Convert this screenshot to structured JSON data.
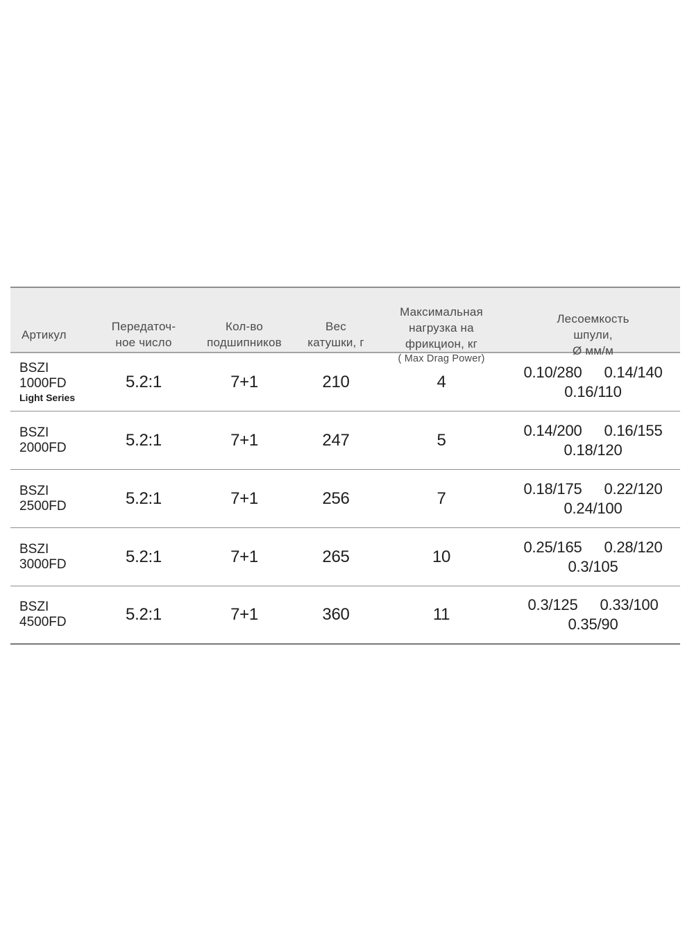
{
  "page": {
    "background_color": "#ffffff"
  },
  "table": {
    "style": {
      "header_background": "#edecec",
      "header_text_color": "#4a4a4a",
      "body_text_color": "#1d1d1d",
      "top_border_color": "#8e8e8e",
      "row_separator_color": "#8f8f8f",
      "bottom_border_color": "#777777"
    },
    "columns": [
      {
        "id": "artikul",
        "label": "Артикул"
      },
      {
        "id": "gear_ratio",
        "label": "Передаточ-\nное число"
      },
      {
        "id": "bearings",
        "label": "Кол-во\nподшипников"
      },
      {
        "id": "weight",
        "label": "Вес\nкатушки, г"
      },
      {
        "id": "max_drag",
        "label": "Максимальная\nнагрузка на\nфрикцион, кг",
        "sublabel": "( Max Drag Power)"
      },
      {
        "id": "line_capacity",
        "label": "Лесоемкость\nшпули,\nØ мм/м"
      }
    ],
    "rows": [
      {
        "model_line1": "BSZI",
        "model_line2": "1000FD",
        "model_note": "Light Series",
        "gear_ratio": "5.2:1",
        "bearings": "7+1",
        "weight": "210",
        "max_drag": "4",
        "capacity_a": "0.10/280",
        "capacity_b": "0.14/140",
        "capacity_c": "0.16/110"
      },
      {
        "model_line1": "BSZI",
        "model_line2": "2000FD",
        "gear_ratio": "5.2:1",
        "bearings": "7+1",
        "weight": "247",
        "max_drag": "5",
        "capacity_a": "0.14/200",
        "capacity_b": "0.16/155",
        "capacity_c": "0.18/120"
      },
      {
        "model_line1": "BSZI",
        "model_line2": "2500FD",
        "gear_ratio": "5.2:1",
        "bearings": "7+1",
        "weight": "256",
        "max_drag": "7",
        "capacity_a": "0.18/175",
        "capacity_b": "0.22/120",
        "capacity_c": "0.24/100"
      },
      {
        "model_line1": "BSZI",
        "model_line2": "3000FD",
        "gear_ratio": "5.2:1",
        "bearings": "7+1",
        "weight": "265",
        "max_drag": "10",
        "capacity_a": "0.25/165",
        "capacity_b": "0.28/120",
        "capacity_c": "0.3/105"
      },
      {
        "model_line1": "BSZI",
        "model_line2": "4500FD",
        "gear_ratio": "5.2:1",
        "bearings": "7+1",
        "weight": "360",
        "max_drag": "11",
        "capacity_a": "0.3/125",
        "capacity_b": "0.33/100",
        "capacity_c": "0.35/90"
      }
    ]
  }
}
